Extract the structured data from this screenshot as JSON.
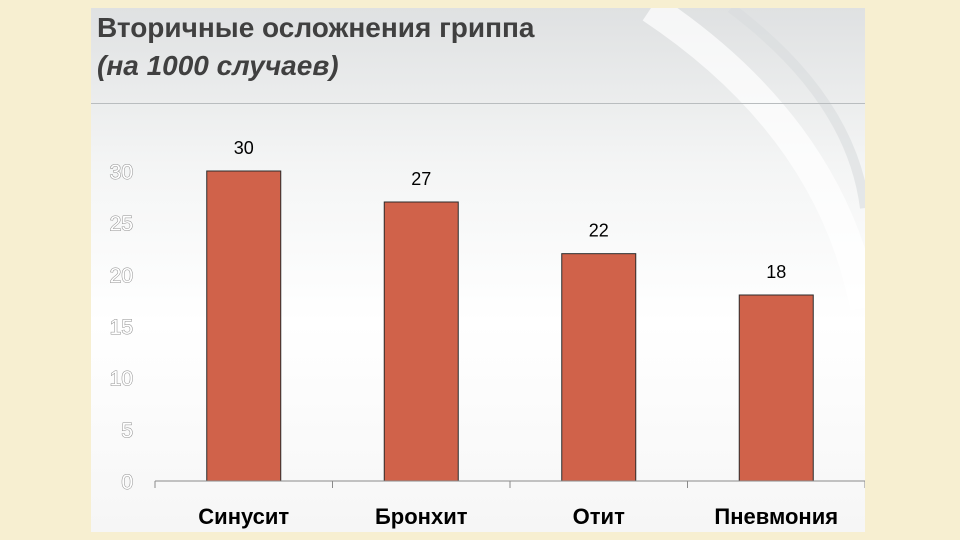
{
  "title": {
    "line1": "Вторичные осложнения гриппа",
    "line2": "(на 1000 случаев)"
  },
  "chart_data": {
    "type": "bar",
    "categories": [
      "Синусит",
      "Бронхит",
      "Отит",
      "Пневмония"
    ],
    "values": [
      30,
      27,
      22,
      18
    ],
    "data_labels": [
      "30",
      "27",
      "22",
      "18"
    ],
    "yticks": [
      "0",
      "5",
      "10",
      "15",
      "20",
      "25",
      "30"
    ],
    "ylim": [
      0,
      30
    ],
    "grid": false,
    "legend": "none",
    "bar_color": "#d0624a",
    "bar_stroke": "#2b2b2b"
  }
}
